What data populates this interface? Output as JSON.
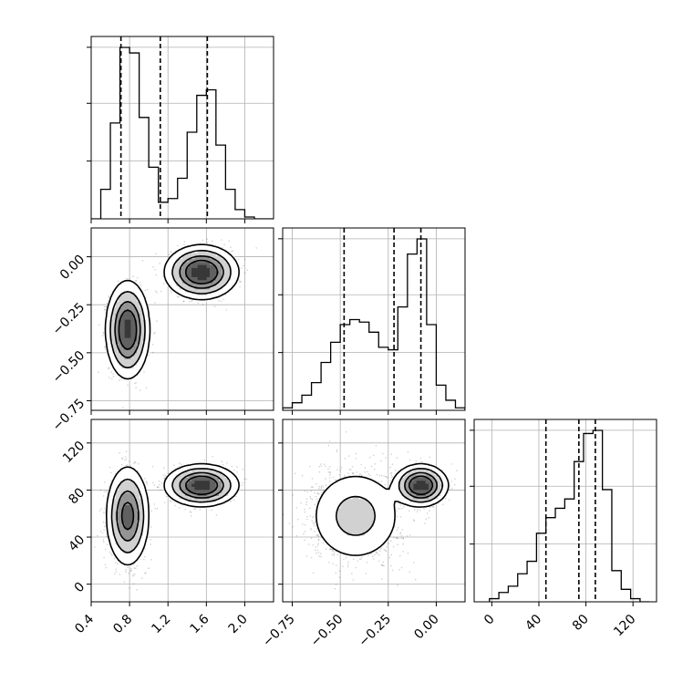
{
  "chart_data": {
    "type": "corner",
    "parameters": [
      {
        "range": [
          0.4,
          2.3
        ],
        "ticks": [
          0.4,
          0.8,
          1.2,
          1.6,
          2.0
        ],
        "tick_labels": [
          "0.4",
          "0.8",
          "1.2",
          "1.6",
          "2.0"
        ],
        "quantiles": [
          0.71,
          1.12,
          1.61
        ],
        "histogram": {
          "bin_edges": [
            0.4,
            0.5,
            0.6,
            0.7,
            0.8,
            0.9,
            1.0,
            1.1,
            1.2,
            1.3,
            1.4,
            1.5,
            1.6,
            1.7,
            1.8,
            1.9,
            2.0,
            2.1,
            2.2,
            2.3
          ],
          "counts": [
            0,
            16,
            52,
            93,
            90,
            55,
            28,
            9,
            11,
            22,
            47,
            67,
            70,
            40,
            16,
            5,
            1,
            0,
            0
          ]
        }
      },
      {
        "range": [
          -0.8,
          0.15
        ],
        "ticks": [
          -0.75,
          -0.5,
          -0.25,
          0.0
        ],
        "tick_labels": [
          "−0.75",
          "−0.50",
          "−0.25",
          "0.00"
        ],
        "quantiles": [
          -0.48,
          -0.22,
          -0.08
        ],
        "histogram": {
          "bin_edges": [
            -0.8,
            -0.75,
            -0.7,
            -0.65,
            -0.6,
            -0.55,
            -0.5,
            -0.45,
            -0.4,
            -0.35,
            -0.3,
            -0.25,
            -0.2,
            -0.15,
            -0.1,
            -0.05,
            0.0,
            0.05,
            0.1,
            0.15
          ],
          "counts": [
            1,
            3,
            6,
            11,
            19,
            27,
            34,
            36,
            35,
            31,
            25,
            24,
            41,
            62,
            68,
            34,
            10,
            4,
            1
          ]
        }
      },
      {
        "range": [
          -15,
          140
        ],
        "ticks": [
          0,
          40,
          80,
          120
        ],
        "tick_labels": [
          "0",
          "40",
          "80",
          "120"
        ],
        "quantiles": [
          46,
          74,
          88
        ],
        "histogram": {
          "bin_edges": [
            -2,
            6,
            14,
            22,
            30,
            38,
            46,
            54,
            62,
            70,
            78,
            86,
            94,
            102,
            110,
            118,
            126,
            134
          ],
          "counts": [
            1,
            3,
            5,
            9,
            13,
            22,
            27,
            30,
            33,
            45,
            54,
            55,
            36,
            10,
            4,
            1,
            0
          ]
        }
      }
    ],
    "pairs": [
      {
        "x_param": 0,
        "y_param": 1,
        "modes": [
          {
            "center": [
              0.78,
              -0.38
            ],
            "sd": [
              0.09,
              0.1
            ],
            "weight": 0.5
          },
          {
            "center": [
              1.55,
              -0.08
            ],
            "sd": [
              0.15,
              0.055
            ],
            "weight": 0.5
          }
        ]
      },
      {
        "x_param": 0,
        "y_param": 2,
        "modes": [
          {
            "center": [
              0.78,
              58
            ],
            "sd": [
              0.09,
              17
            ],
            "weight": 0.5
          },
          {
            "center": [
              1.55,
              84
            ],
            "sd": [
              0.15,
              7
            ],
            "weight": 0.5
          }
        ]
      },
      {
        "x_param": 1,
        "y_param": 2,
        "modes": [
          {
            "center": [
              -0.42,
              58
            ],
            "sd": [
              0.11,
              18
            ],
            "weight": 0.5
          },
          {
            "center": [
              -0.08,
              84
            ],
            "sd": [
              0.055,
              7
            ],
            "weight": 0.5
          }
        ]
      }
    ],
    "grid": true,
    "colors": {
      "line": "#000000",
      "grid": "#b0b0b0",
      "points": "#000000"
    }
  }
}
